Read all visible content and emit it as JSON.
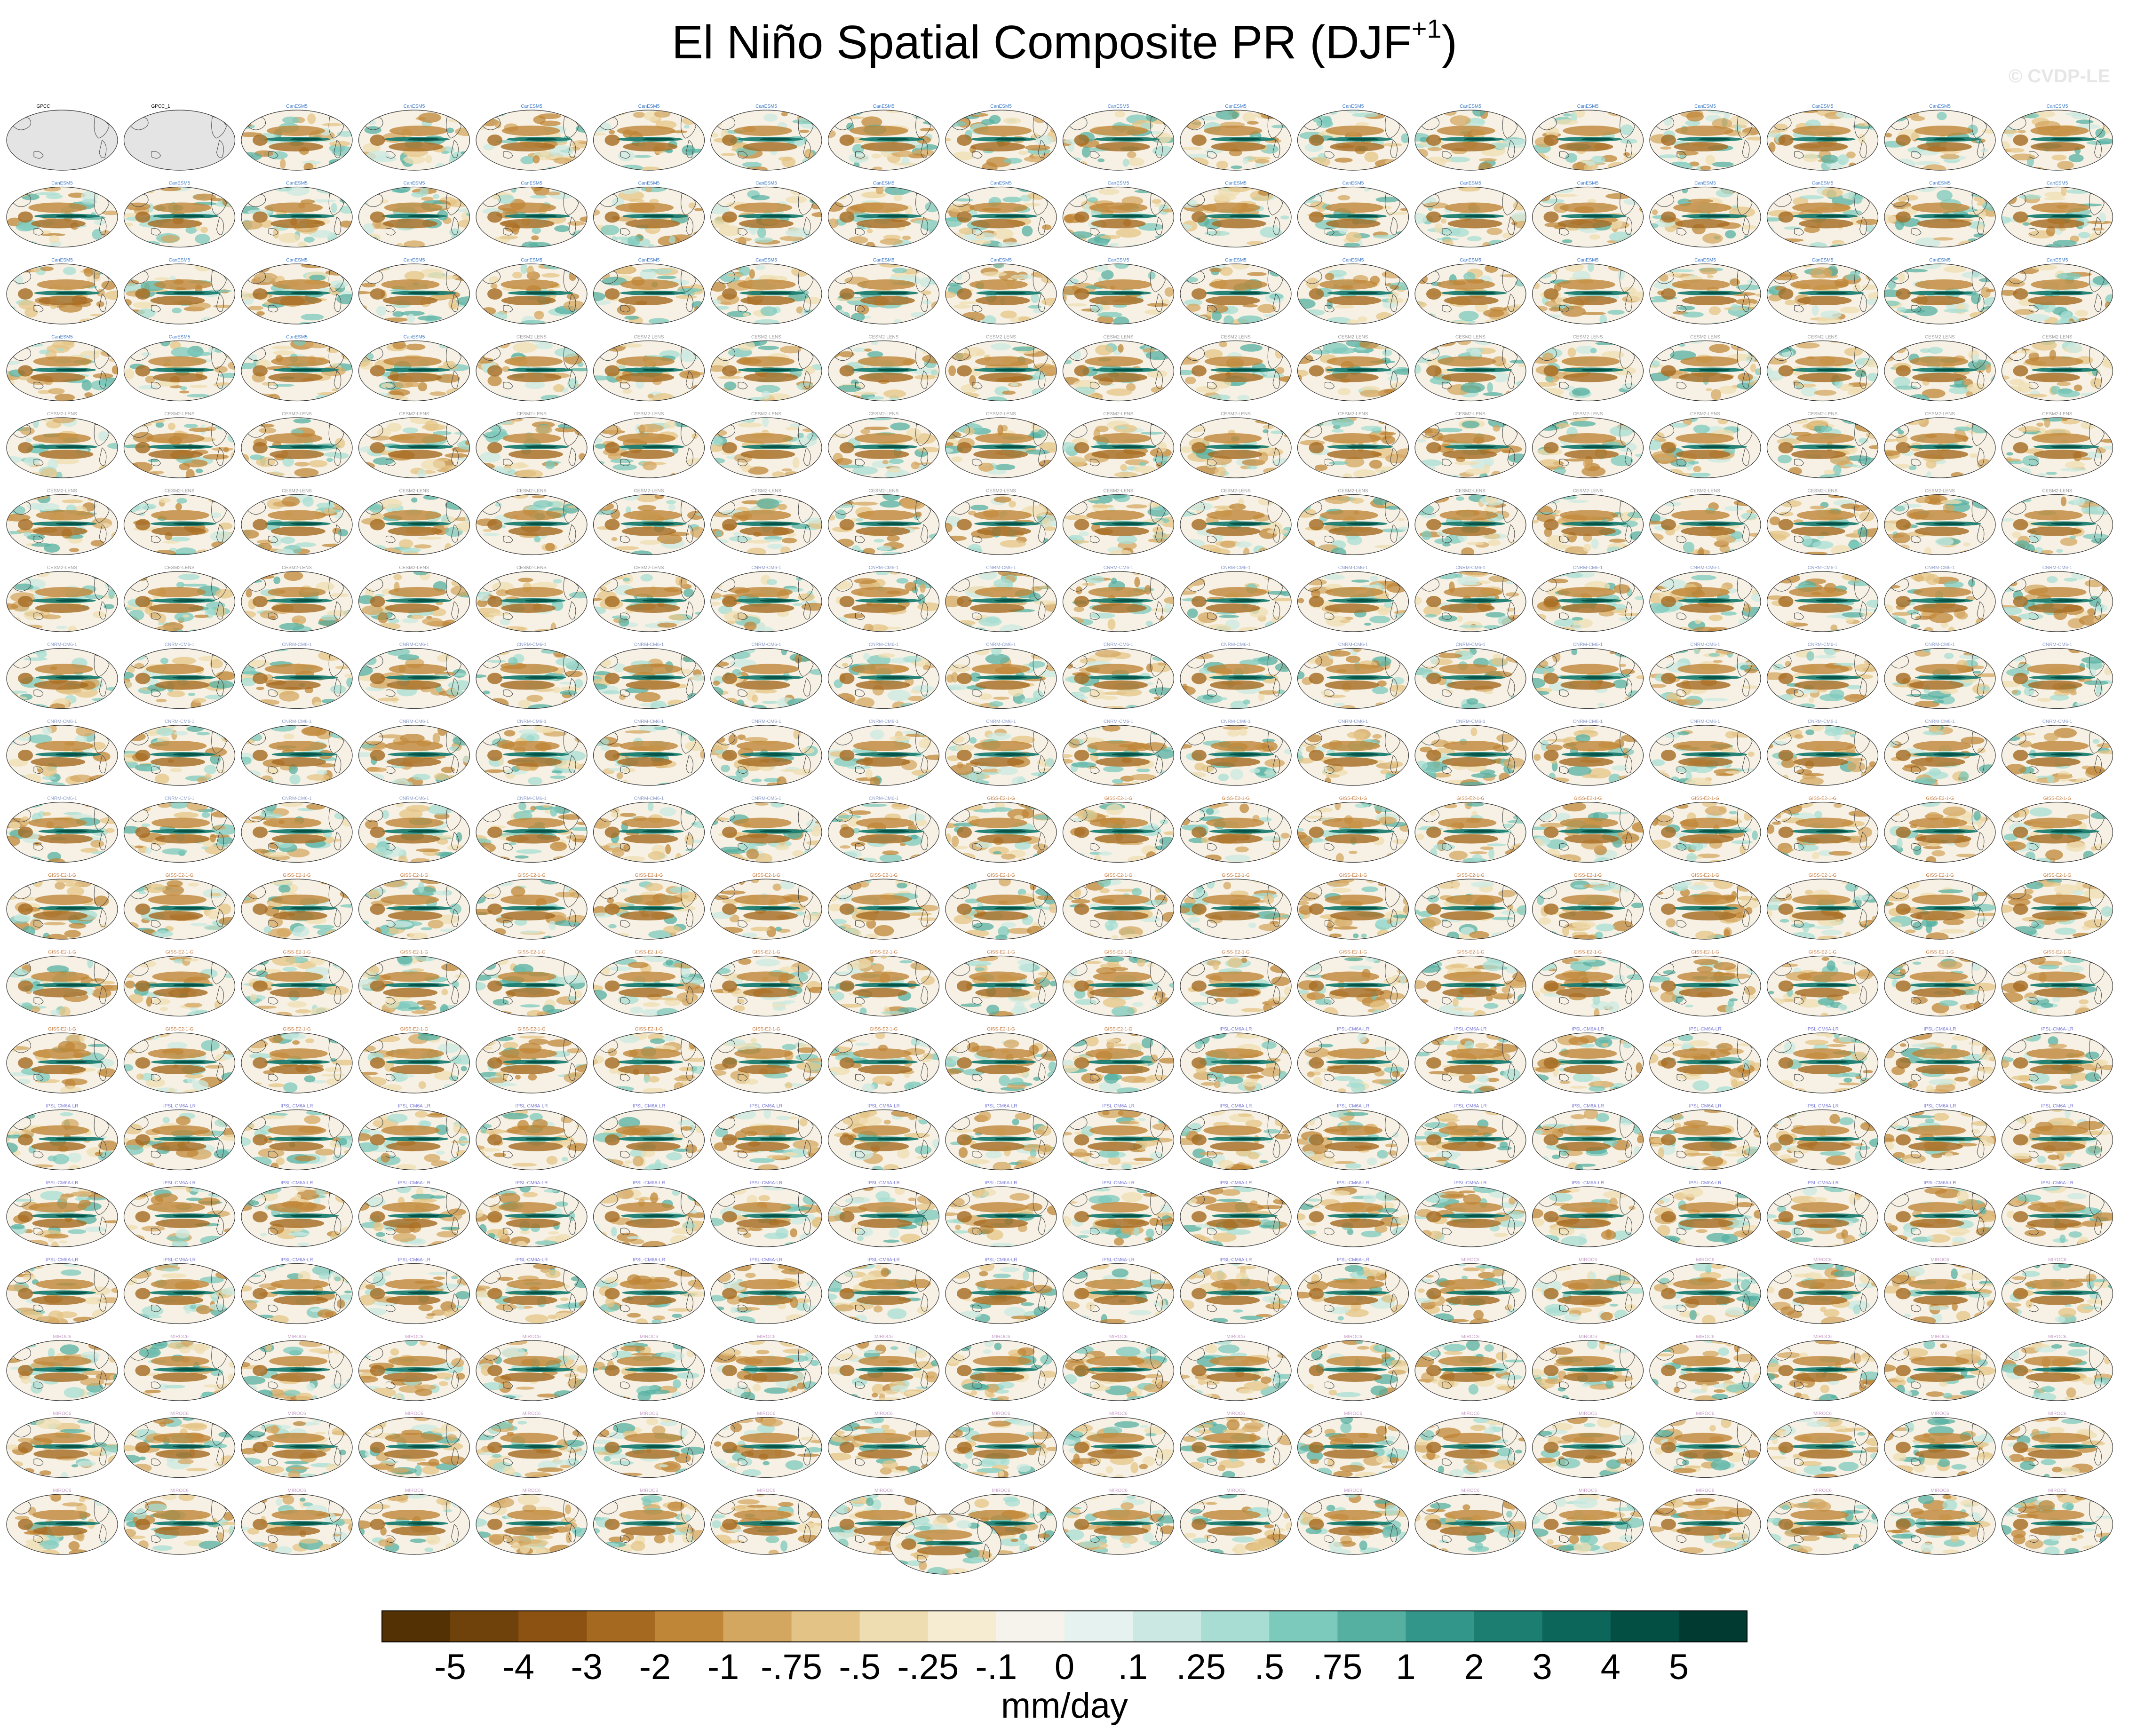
{
  "title_main": "El Niño Spatial Composite PR (DJF",
  "title_sup": "+1",
  "title_close": ")",
  "watermark": "© CVDP-LE",
  "chart_data": {
    "type": "heatmap",
    "title": "El Niño Spatial Composite PR (DJF+1)",
    "layout": {
      "rows": 19,
      "cols": 18,
      "extra_panels": 1
    },
    "panel_labels_first_row": [
      "GPCC",
      "GPCC_1"
    ],
    "observation_panel_fill": "#e4e4e4",
    "model_ensembles": [
      {
        "name": "CanESM5",
        "color": "#3a78c8"
      },
      {
        "name": "CESM2-LENS",
        "color": "#9a9a9a"
      },
      {
        "name": "CNRM-CM6-1",
        "color": "#8a9ac8"
      },
      {
        "name": "GISS-E2-1-G",
        "color": "#c87a3a"
      },
      {
        "name": "IPSL-CM6A-LR",
        "color": "#7a7ad8"
      },
      {
        "name": "MIROC6",
        "color": "#c8a0c8"
      }
    ],
    "colorbar": {
      "units": "mm/day",
      "tick_labels": [
        "-5",
        "-4",
        "-3",
        "-2",
        "-1",
        "-.75",
        "-.5",
        "-.25",
        "-.1",
        "0",
        ".1",
        ".25",
        ".5",
        ".75",
        "1",
        "2",
        "3",
        "4",
        "5"
      ],
      "colors": [
        "#543005",
        "#6f420b",
        "#8c5211",
        "#a56a20",
        "#bf8637",
        "#d4a761",
        "#e4c486",
        "#efddb2",
        "#f6ecd2",
        "#f5f3ec",
        "#e6f2ef",
        "#cbe9e2",
        "#a7ddd3",
        "#7ccabc",
        "#55b0a2",
        "#33968a",
        "#1c7d71",
        "#0d665a",
        "#044f44",
        "#013a31"
      ]
    }
  }
}
